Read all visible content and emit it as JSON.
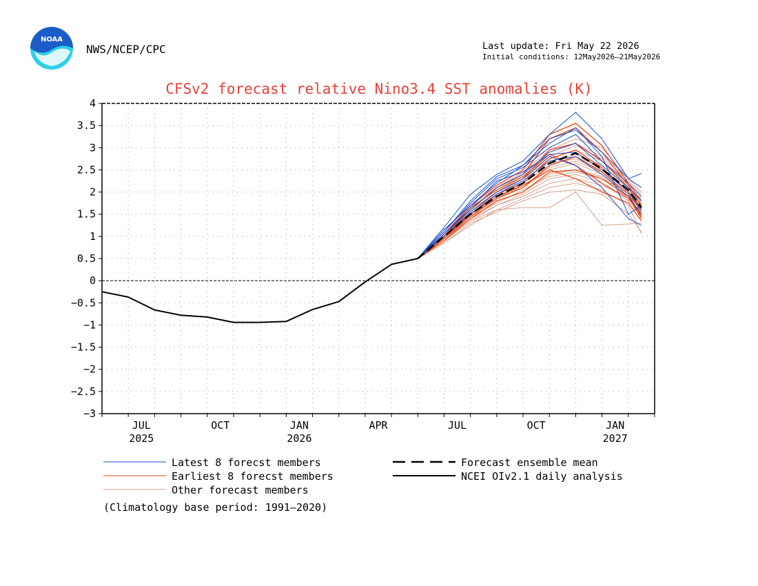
{
  "header": {
    "logo_text": "NOAA",
    "agency": "NWS/NCEP/CPC",
    "last_update": "Last update: Fri May 22 2026",
    "initial_conditions": "Initial conditions: 12May2026—21May2026"
  },
  "chart_data": {
    "type": "line",
    "title": "CFSv2 forecast relative Nino3.4 SST anomalies (K)",
    "ylim": [
      -3,
      4
    ],
    "yticks": [
      "4",
      "3.5",
      "3",
      "2.5",
      "2",
      "1.5",
      "1",
      "0.5",
      "0",
      "−0.5",
      "−1",
      "−1.5",
      "−2",
      "−2.5",
      "−3"
    ],
    "ytick_values": [
      4,
      3.5,
      3,
      2.5,
      2,
      1.5,
      1,
      0.5,
      0,
      -0.5,
      -1,
      -1.5,
      -2,
      -2.5,
      -3
    ],
    "xlim": [
      2025.375,
      2027.125
    ],
    "xticks": [
      {
        "month": "JUL",
        "year": "2025",
        "x": 2025.5
      },
      {
        "month": "OCT",
        "year": "",
        "x": 2025.75
      },
      {
        "month": "JAN",
        "year": "2026",
        "x": 2026.0
      },
      {
        "month": "APR",
        "year": "",
        "x": 2026.25
      },
      {
        "month": "JUL",
        "year": "",
        "x": 2026.5
      },
      {
        "month": "OCT",
        "year": "",
        "x": 2026.75
      },
      {
        "month": "JAN",
        "year": "2027",
        "x": 2027.0
      }
    ],
    "grid": true,
    "zero_line": true,
    "observed": {
      "name": "NCEI OIv2.1 daily analysis",
      "color": "#000000",
      "x": [
        2025.375,
        2025.458,
        2025.542,
        2025.625,
        2025.708,
        2025.792,
        2025.875,
        2025.958,
        2026.042,
        2026.125,
        2026.208,
        2026.292,
        2026.375
      ],
      "y": [
        -0.25,
        -0.37,
        -0.66,
        -0.78,
        -0.82,
        -0.94,
        -0.94,
        -0.92,
        -0.65,
        -0.47,
        -0.03,
        0.37,
        0.5
      ]
    },
    "ensemble_mean": {
      "name": "Forecast ensemble mean",
      "color": "#000000",
      "x": [
        2026.375,
        2026.458,
        2026.542,
        2026.625,
        2026.708,
        2026.792,
        2026.875,
        2026.958,
        2027.042,
        2027.083
      ],
      "y": [
        0.5,
        1.0,
        1.5,
        1.9,
        2.2,
        2.65,
        2.88,
        2.52,
        2.05,
        1.65
      ]
    },
    "member_x": [
      2026.375,
      2026.458,
      2026.542,
      2026.625,
      2026.708,
      2026.792,
      2026.875,
      2026.958,
      2027.042,
      2027.083
    ],
    "member_groups": [
      {
        "name": "Latest 8 forecst members",
        "color": "#1a4fc9",
        "members": [
          [
            0.5,
            1.2,
            1.95,
            2.4,
            2.7,
            3.3,
            3.8,
            3.2,
            2.3,
            2.42
          ],
          [
            0.5,
            1.1,
            1.8,
            2.35,
            2.6,
            3.1,
            3.45,
            2.8,
            1.5,
            1.7
          ],
          [
            0.5,
            1.15,
            1.7,
            2.2,
            2.6,
            3.2,
            3.4,
            2.9,
            2.3,
            2.1
          ],
          [
            0.5,
            1.05,
            1.6,
            2.1,
            2.4,
            2.9,
            3.1,
            2.6,
            2.1,
            1.8
          ],
          [
            0.5,
            1.0,
            1.55,
            2.0,
            2.3,
            2.8,
            2.6,
            2.1,
            1.4,
            1.25
          ],
          [
            0.5,
            1.1,
            1.75,
            2.3,
            2.55,
            3.0,
            3.3,
            2.7,
            2.2,
            1.9
          ],
          [
            0.5,
            1.05,
            1.65,
            2.25,
            2.45,
            2.85,
            2.9,
            2.5,
            2.0,
            1.6
          ],
          [
            0.5,
            1.0,
            1.5,
            1.95,
            2.25,
            2.7,
            2.8,
            2.4,
            1.9,
            1.5
          ]
        ]
      },
      {
        "name": "Earliest 8 forecst members",
        "color": "#ee4411",
        "members": [
          [
            0.5,
            1.05,
            1.7,
            2.15,
            2.5,
            3.3,
            3.55,
            3.05,
            2.2,
            1.8
          ],
          [
            0.5,
            1.0,
            1.6,
            2.1,
            2.4,
            3.2,
            3.45,
            2.9,
            2.15,
            1.7
          ],
          [
            0.5,
            0.95,
            1.55,
            2.0,
            2.3,
            2.95,
            3.1,
            2.7,
            2.1,
            1.6
          ],
          [
            0.5,
            1.0,
            1.5,
            1.95,
            2.2,
            2.75,
            2.95,
            2.55,
            2.0,
            1.55
          ],
          [
            0.5,
            0.95,
            1.45,
            1.85,
            2.1,
            2.6,
            2.8,
            2.45,
            1.95,
            1.45
          ],
          [
            0.5,
            0.9,
            1.4,
            1.8,
            2.0,
            2.45,
            2.5,
            2.3,
            1.9,
            1.4
          ],
          [
            0.5,
            1.0,
            1.65,
            2.05,
            2.35,
            2.85,
            2.6,
            2.2,
            1.85,
            1.5
          ],
          [
            0.5,
            0.95,
            1.5,
            1.9,
            2.15,
            2.5,
            2.3,
            2.0,
            1.75,
            1.35
          ]
        ]
      },
      {
        "name": "Other forecast members",
        "color": "#d8a08a",
        "members": [
          [
            0.5,
            0.9,
            1.35,
            1.6,
            1.65,
            1.65,
            2.0,
            1.25,
            1.28,
            1.3
          ],
          [
            0.5,
            0.85,
            1.3,
            1.55,
            1.8,
            2.0,
            2.05,
            1.95,
            1.5,
            1.1
          ],
          [
            0.5,
            0.95,
            1.4,
            1.7,
            1.9,
            2.2,
            2.3,
            2.15,
            1.9,
            1.65
          ],
          [
            0.5,
            0.9,
            1.45,
            1.75,
            2.05,
            2.35,
            2.45,
            2.3,
            2.0,
            1.75
          ],
          [
            0.5,
            1.0,
            1.5,
            1.85,
            2.15,
            2.55,
            2.7,
            2.45,
            2.05,
            1.8
          ],
          [
            0.5,
            0.95,
            1.55,
            1.95,
            2.25,
            2.7,
            2.85,
            2.6,
            2.1,
            1.85
          ],
          [
            0.5,
            1.0,
            1.6,
            2.0,
            2.35,
            2.8,
            3.05,
            2.75,
            2.2,
            1.9
          ],
          [
            0.5,
            1.05,
            1.7,
            2.1,
            2.45,
            2.95,
            3.2,
            3.0,
            2.3,
            2.0
          ],
          [
            0.5,
            0.9,
            1.4,
            1.8,
            2.0,
            2.4,
            2.5,
            2.35,
            1.85,
            1.55
          ],
          [
            0.5,
            0.95,
            1.45,
            1.9,
            2.1,
            2.5,
            2.65,
            2.4,
            1.95,
            1.6
          ],
          [
            0.5,
            1.0,
            1.55,
            1.95,
            2.3,
            2.75,
            2.95,
            2.7,
            2.15,
            1.7
          ],
          [
            0.5,
            0.9,
            1.35,
            1.7,
            1.95,
            2.3,
            2.4,
            2.2,
            1.8,
            1.45
          ],
          [
            0.5,
            0.95,
            1.5,
            1.85,
            2.2,
            2.6,
            2.8,
            2.55,
            2.05,
            1.75
          ],
          [
            0.5,
            1.05,
            1.65,
            2.05,
            2.4,
            2.9,
            3.1,
            2.8,
            2.25,
            1.95
          ],
          [
            0.5,
            0.85,
            1.25,
            1.6,
            1.85,
            2.1,
            2.2,
            2.05,
            1.7,
            1.05
          ],
          [
            0.5,
            1.0,
            1.6,
            2.0,
            2.3,
            2.65,
            2.75,
            2.5,
            2.0,
            1.7
          ]
        ]
      }
    ],
    "legend": {
      "latest": "Latest 8 forecst members",
      "earliest": "Earliest 8 forecst members",
      "other": "Other forecast members",
      "mean": "Forecast ensemble mean",
      "observed": "NCEI OIv2.1 daily analysis"
    },
    "note": "(Climatology base period: 1991—2020)"
  },
  "colors": {
    "title": "#e8403a",
    "latest": "#1a4fc9",
    "earliest": "#ee4411",
    "other": "#d8a08a",
    "logo_blue": "#1c5cc8",
    "logo_cyan": "#2ed0e8"
  }
}
